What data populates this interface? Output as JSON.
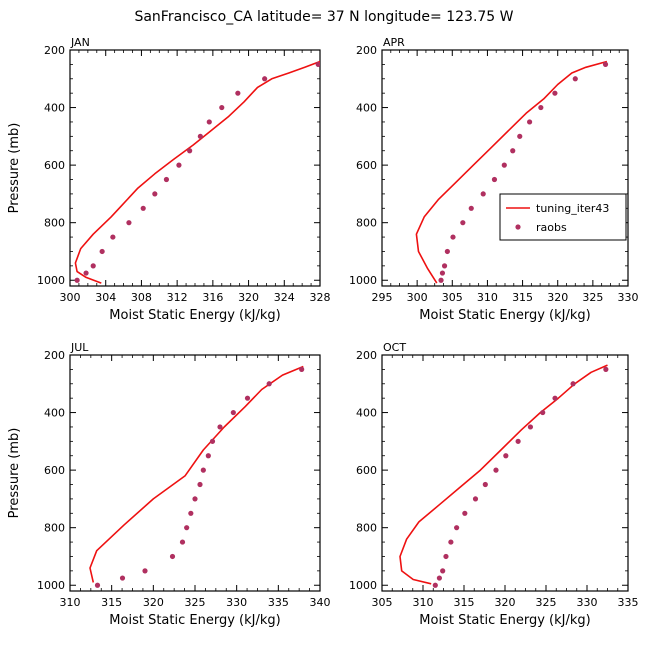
{
  "figure": {
    "title": "SanFrancisco_CA  latitude= 37 N longitude= 123.75 W",
    "model_color": "#ee1111",
    "obs_color": "#b03060"
  },
  "legend": {
    "model_label": "tuning_iter43",
    "obs_label": "raobs"
  },
  "chart_data": [
    {
      "type": "line",
      "panel": "JAN",
      "xlabel": "Moist Static Energy (kJ/kg)",
      "ylabel": "Pressure (mb)",
      "xlim": [
        300,
        328
      ],
      "xticks": [
        300,
        304,
        308,
        312,
        316,
        320,
        324,
        328
      ],
      "ylim": [
        1020,
        200
      ],
      "yticks": [
        200,
        400,
        600,
        800,
        1000
      ],
      "series": [
        {
          "name": "tuning_iter43",
          "style": "line",
          "x": [
            328.0,
            326.3,
            324.5,
            322.6,
            321.0,
            319.5,
            317.8,
            315.8,
            313.8,
            311.6,
            309.5,
            307.6,
            305.8,
            304.6,
            302.6,
            301.2,
            300.6,
            300.8,
            301.8,
            303.5
          ],
          "y": [
            240,
            260,
            280,
            300,
            330,
            380,
            430,
            480,
            530,
            580,
            630,
            680,
            740,
            780,
            840,
            890,
            940,
            970,
            990,
            1010
          ]
        },
        {
          "name": "raobs",
          "style": "markers",
          "x": [
            327.8,
            321.8,
            318.8,
            317.0,
            315.6,
            314.6,
            313.4,
            312.2,
            310.8,
            309.5,
            308.2,
            306.6,
            304.8,
            303.6,
            302.6,
            301.8,
            300.8
          ],
          "y": [
            250,
            300,
            350,
            400,
            450,
            500,
            550,
            600,
            650,
            700,
            750,
            800,
            850,
            900,
            950,
            975,
            1000
          ]
        }
      ]
    },
    {
      "type": "line",
      "panel": "APR",
      "xlabel": "Moist Static Energy (kJ/kg)",
      "ylabel": "",
      "xlim": [
        295,
        330
      ],
      "xticks": [
        295,
        300,
        305,
        310,
        315,
        320,
        325,
        330
      ],
      "ylim": [
        1020,
        200
      ],
      "yticks": [
        200,
        400,
        600,
        800,
        1000
      ],
      "series": [
        {
          "name": "tuning_iter43",
          "style": "line",
          "x": [
            327.0,
            324.0,
            322.0,
            320.0,
            318.0,
            315.5,
            313.0,
            310.5,
            308.0,
            305.5,
            303.0,
            301.0,
            299.9,
            300.2,
            301.5,
            302.8
          ],
          "y": [
            240,
            260,
            280,
            320,
            370,
            420,
            480,
            540,
            600,
            660,
            720,
            780,
            840,
            900,
            960,
            1010
          ]
        },
        {
          "name": "raobs",
          "style": "markers",
          "x": [
            326.8,
            322.5,
            319.6,
            317.6,
            316.0,
            314.6,
            313.6,
            312.4,
            311.0,
            309.4,
            307.7,
            306.5,
            305.1,
            304.3,
            303.9,
            303.6,
            303.4
          ],
          "y": [
            250,
            300,
            350,
            400,
            450,
            500,
            550,
            600,
            650,
            700,
            750,
            800,
            850,
            900,
            950,
            975,
            1000
          ]
        }
      ]
    },
    {
      "type": "line",
      "panel": "JUL",
      "xlabel": "Moist Static Energy (kJ/kg)",
      "ylabel": "Pressure (mb)",
      "xlim": [
        310,
        340
      ],
      "xticks": [
        310,
        315,
        320,
        325,
        330,
        335,
        340
      ],
      "ylim": [
        1020,
        200
      ],
      "yticks": [
        200,
        400,
        600,
        800,
        1000
      ],
      "series": [
        {
          "name": "tuning_iter43",
          "style": "line",
          "x": [
            338.0,
            335.5,
            333.0,
            331.0,
            328.5,
            326.0,
            323.8,
            320.0,
            316.5,
            313.2,
            312.4,
            312.8
          ],
          "y": [
            240,
            270,
            320,
            380,
            450,
            530,
            620,
            700,
            790,
            880,
            940,
            990
          ]
        },
        {
          "name": "raobs",
          "style": "markers",
          "x": [
            337.8,
            333.9,
            331.3,
            329.6,
            328.0,
            327.1,
            326.6,
            326.0,
            325.6,
            325.0,
            324.5,
            324.0,
            323.5,
            322.3,
            319.0,
            316.3,
            313.3
          ],
          "y": [
            250,
            300,
            350,
            400,
            450,
            500,
            550,
            600,
            650,
            700,
            750,
            800,
            850,
            900,
            950,
            975,
            1000
          ]
        }
      ]
    },
    {
      "type": "line",
      "panel": "OCT",
      "xlabel": "Moist Static Energy (kJ/kg)",
      "ylabel": "",
      "xlim": [
        305,
        335
      ],
      "xticks": [
        305,
        310,
        315,
        320,
        325,
        330,
        335
      ],
      "ylim": [
        1020,
        200
      ],
      "yticks": [
        200,
        400,
        600,
        800,
        1000
      ],
      "series": [
        {
          "name": "tuning_iter43",
          "style": "line",
          "x": [
            332.5,
            330.5,
            328.5,
            326.5,
            324.3,
            322.0,
            319.5,
            317.0,
            314.5,
            312.0,
            309.5,
            308.0,
            307.2,
            307.4,
            308.8,
            311.0
          ],
          "y": [
            235,
            260,
            300,
            350,
            400,
            460,
            530,
            600,
            660,
            720,
            780,
            840,
            900,
            950,
            980,
            995
          ]
        },
        {
          "name": "raobs",
          "style": "markers",
          "x": [
            332.3,
            328.3,
            326.1,
            324.6,
            323.1,
            321.6,
            320.1,
            318.9,
            317.6,
            316.4,
            315.1,
            314.1,
            313.4,
            312.8,
            312.4,
            312.0,
            311.5
          ],
          "y": [
            250,
            300,
            350,
            400,
            450,
            500,
            550,
            600,
            650,
            700,
            750,
            800,
            850,
            900,
            950,
            975,
            1000
          ]
        }
      ]
    }
  ]
}
